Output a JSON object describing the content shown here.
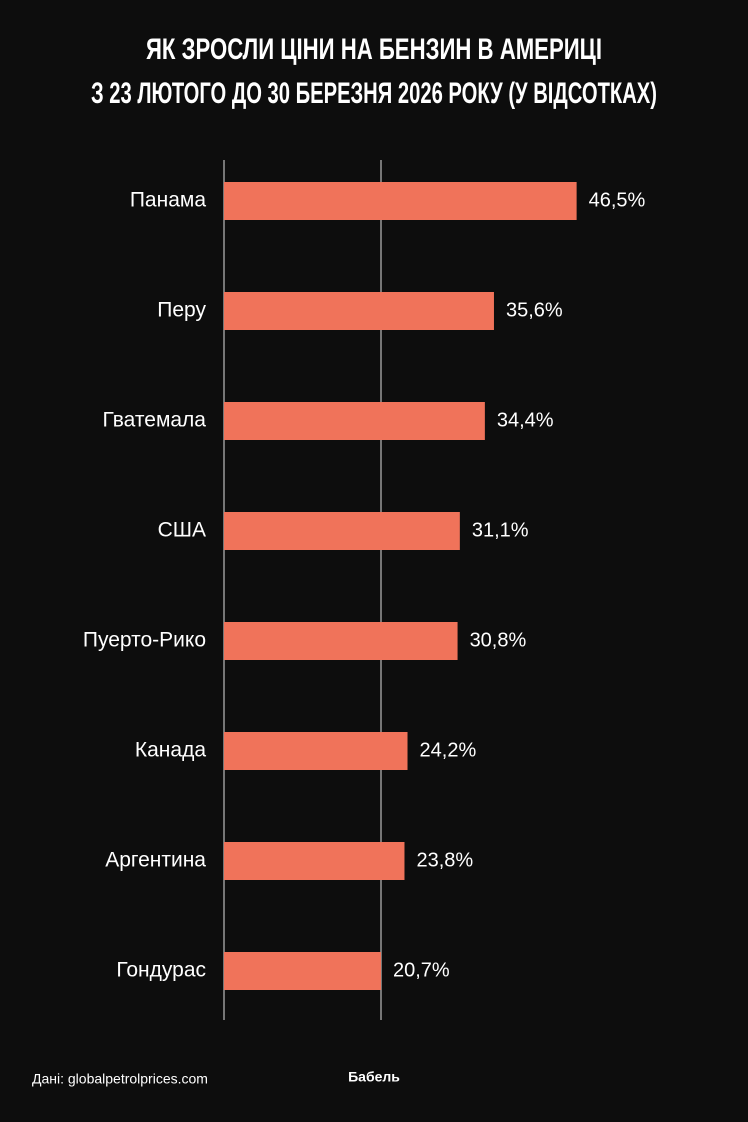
{
  "chart_data": {
    "type": "bar",
    "orientation": "horizontal",
    "title": [
      "ЯК ЗРОСЛИ ЦІНИ НА БЕНЗИН В АМЕРИЦІ",
      "З 23 ЛЮТОГО ДО 30 БЕРЕЗНЯ 2026 РОКУ (У ВІДСОТКАХ)"
    ],
    "categories": [
      "Панама",
      "Перу",
      "Гватемала",
      "США",
      "Пуерто-Рико",
      "Канада",
      "Аргентина",
      "Гондурас"
    ],
    "values": [
      46.5,
      35.6,
      34.4,
      31.1,
      30.8,
      24.2,
      23.8,
      20.7
    ],
    "value_labels": [
      "46,5%",
      "35,6%",
      "34,4%",
      "31,1%",
      "30,8%",
      "24,2%",
      "23,8%",
      "20,7%"
    ],
    "color": "#f0735a",
    "xlim": [
      0,
      60
    ],
    "source": "Дані: globalpetrolprices.com",
    "brand": "Бабель"
  }
}
